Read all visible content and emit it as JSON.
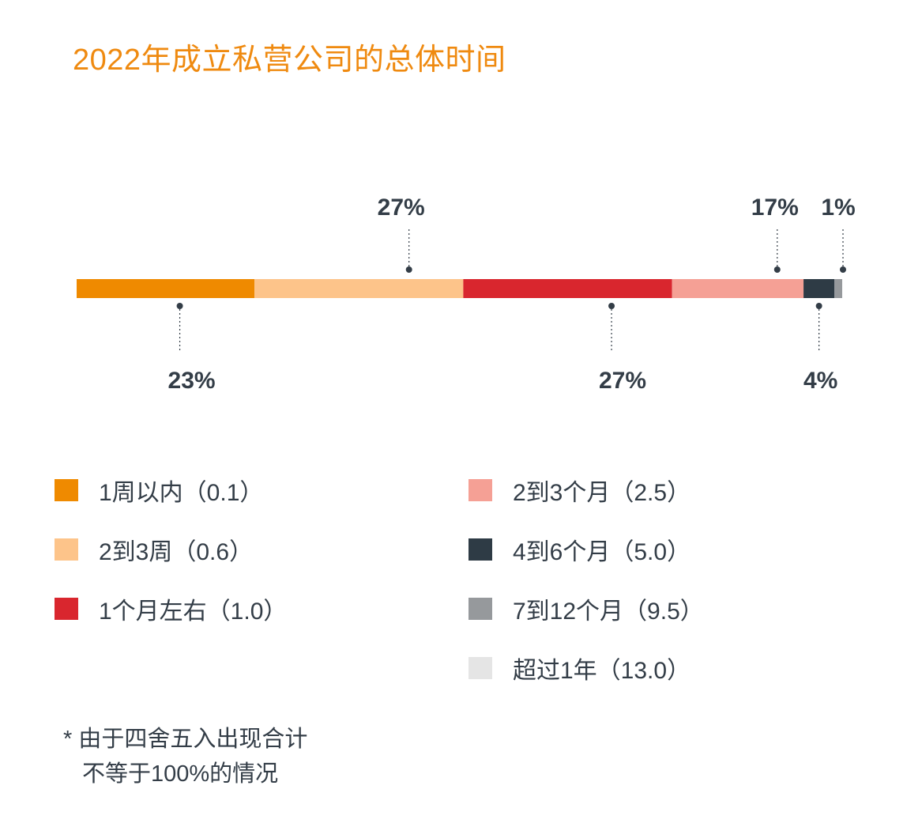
{
  "chart_data": {
    "type": "bar",
    "orientation": "horizontal-stacked",
    "title": "2022年成立私营公司的总体时间",
    "unit": "%",
    "segments": [
      {
        "name": "1周以内（0.1）",
        "value": 23,
        "color": "#ef8a00",
        "label": "23%",
        "label_pos": "below"
      },
      {
        "name": "2到3周（0.6）",
        "value": 27,
        "color": "#fdc48a",
        "label": "27%",
        "label_pos": "above"
      },
      {
        "name": "1个月左右（1.0）",
        "value": 27,
        "color": "#d9262e",
        "label": "27%",
        "label_pos": "below"
      },
      {
        "name": "2到3个月（2.5）",
        "value": 17,
        "color": "#f5a095",
        "label": "17%",
        "label_pos": "above"
      },
      {
        "name": "4到6个月（5.0）",
        "value": 4,
        "color": "#2e3b45",
        "label": "4%",
        "label_pos": "below"
      },
      {
        "name": "7到12个月（9.5）",
        "value": 1,
        "color": "#96999c",
        "label": "1%",
        "label_pos": "above"
      },
      {
        "name": "超过1年（13.0）",
        "value": 0,
        "color": "#e5e5e5",
        "label": "",
        "label_pos": "none"
      }
    ],
    "legend_columns": 2
  },
  "footnote": {
    "line1": "* 由于四舍五入出现合计",
    "line2": "不等于100%的情况"
  }
}
